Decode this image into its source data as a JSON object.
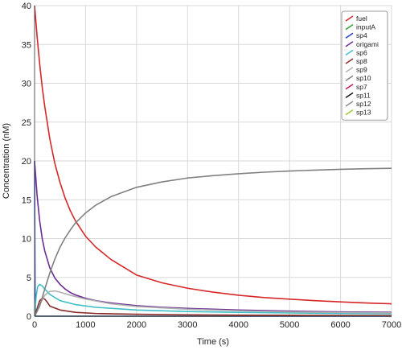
{
  "chart_data": {
    "type": "line",
    "xlabel": "Time (s)",
    "ylabel": "Concentration (nM)",
    "xlim": [
      0,
      7000
    ],
    "ylim": [
      0,
      40
    ],
    "xticks": [
      0,
      1000,
      2000,
      3000,
      4000,
      5000,
      6000,
      7000
    ],
    "yticks": [
      0,
      5,
      10,
      15,
      20,
      25,
      30,
      35,
      40
    ],
    "grid": true,
    "legend_position": "top-right",
    "series": [
      {
        "name": "fuel",
        "color": "#d62728",
        "x": [
          0,
          50,
          100,
          150,
          200,
          300,
          400,
          500,
          600,
          700,
          800,
          1000,
          1200,
          1500,
          2000,
          2500,
          3000,
          3500,
          4000,
          4500,
          5000,
          5500,
          6000,
          6500,
          7000
        ],
        "y": [
          40,
          36,
          32.5,
          29.5,
          27,
          22.8,
          19.6,
          17.2,
          15.2,
          13.6,
          12.3,
          10.3,
          8.9,
          7.3,
          5.3,
          4.3,
          3.6,
          3.1,
          2.7,
          2.4,
          2.2,
          2.0,
          1.85,
          1.7,
          1.6
        ]
      },
      {
        "name": "inputA",
        "color": "#2ca02c",
        "x": [
          0,
          7000
        ],
        "y": [
          0,
          0
        ]
      },
      {
        "name": "sp4",
        "color": "#1f3fbf",
        "x": [
          0,
          5,
          10,
          20,
          7000
        ],
        "y": [
          20,
          10,
          2,
          0,
          0
        ]
      },
      {
        "name": "origami",
        "color": "#6a2c91",
        "x": [
          0,
          50,
          100,
          150,
          200,
          300,
          400,
          500,
          600,
          700,
          800,
          1000,
          1200,
          1500,
          2000,
          2500,
          3000,
          3500,
          4000,
          5000,
          6000,
          7000
        ],
        "y": [
          20,
          15.5,
          12.3,
          10,
          8.4,
          6.2,
          4.9,
          4.1,
          3.5,
          3.05,
          2.75,
          2.3,
          2.0,
          1.7,
          1.35,
          1.15,
          1.0,
          0.9,
          0.8,
          0.65,
          0.55,
          0.5
        ]
      },
      {
        "name": "sp6",
        "color": "#3fc0c8",
        "x": [
          0,
          30,
          60,
          100,
          150,
          200,
          300,
          500,
          800,
          1200,
          2000,
          3000,
          4000,
          5000,
          6000,
          7000
        ],
        "y": [
          0,
          2.5,
          3.8,
          4.1,
          3.9,
          3.5,
          2.8,
          2.0,
          1.5,
          1.15,
          0.8,
          0.6,
          0.5,
          0.42,
          0.36,
          0.32
        ]
      },
      {
        "name": "sp8",
        "color": "#8b2a2a",
        "x": [
          0,
          50,
          100,
          150,
          200,
          250,
          300,
          500,
          800,
          1200,
          2000,
          3000,
          4000,
          5000,
          6000,
          7000
        ],
        "y": [
          0,
          1.0,
          2.0,
          2.3,
          2.2,
          1.8,
          1.3,
          0.8,
          0.5,
          0.35,
          0.25,
          0.18,
          0.14,
          0.12,
          0.1,
          0.08
        ]
      },
      {
        "name": "sp9",
        "color": "#b0b0b0",
        "x": [
          0,
          50,
          100,
          200,
          300,
          400,
          500,
          700,
          1000,
          1500,
          2000,
          3000,
          4000,
          5000,
          6000,
          7000
        ],
        "y": [
          0,
          0.6,
          1.5,
          2.7,
          3.2,
          3.25,
          3.1,
          2.7,
          2.2,
          1.6,
          1.25,
          0.9,
          0.7,
          0.55,
          0.48,
          0.42
        ]
      },
      {
        "name": "sp10",
        "color": "#808080",
        "x": [
          0,
          100,
          200,
          300,
          400,
          500,
          600,
          700,
          800,
          1000,
          1200,
          1500,
          2000,
          2500,
          3000,
          3500,
          4000,
          4500,
          5000,
          5500,
          6000,
          6500,
          7000
        ],
        "y": [
          0,
          1.3,
          3.5,
          5.6,
          7.4,
          8.9,
          10.1,
          11.1,
          12.0,
          13.3,
          14.3,
          15.4,
          16.6,
          17.3,
          17.8,
          18.1,
          18.35,
          18.55,
          18.7,
          18.82,
          18.92,
          19.0,
          19.05
        ]
      },
      {
        "name": "sp7",
        "color": "#c2185b",
        "x": [
          0,
          7000
        ],
        "y": [
          0,
          0
        ]
      },
      {
        "name": "sp11",
        "color": "#111111",
        "x": [
          0,
          7000
        ],
        "y": [
          0,
          0
        ]
      },
      {
        "name": "sp12",
        "color": "#8c8c8c",
        "x": [
          0,
          7000
        ],
        "y": [
          0,
          0
        ]
      },
      {
        "name": "sp13",
        "color": "#9acd32",
        "x": [
          0,
          7000
        ],
        "y": [
          0,
          0
        ]
      }
    ]
  }
}
